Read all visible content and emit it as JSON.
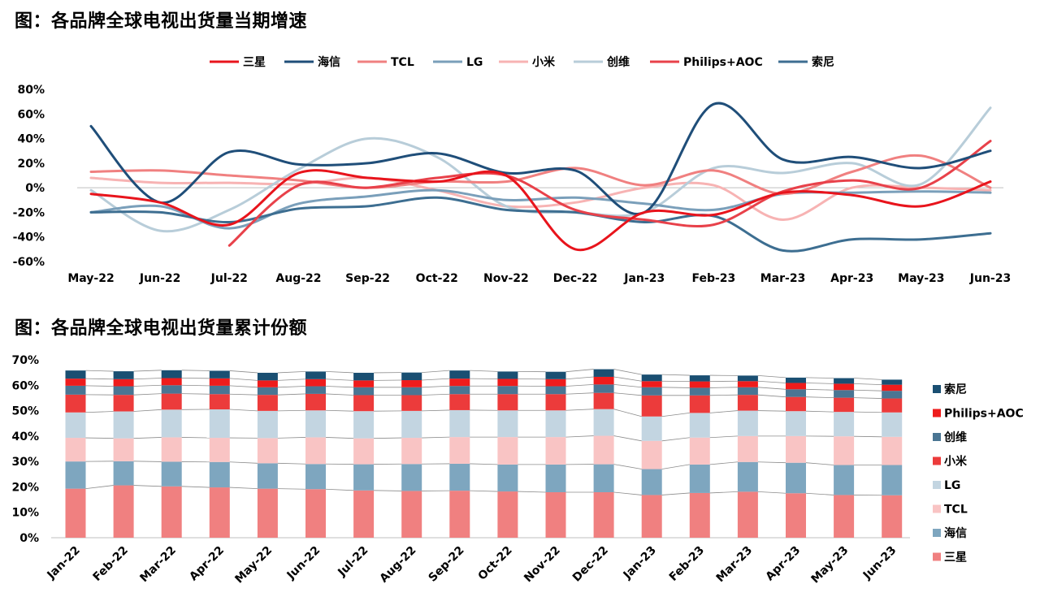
{
  "chart_data": [
    {
      "type": "line",
      "title": "图：各品牌全球电视出货量当期增速",
      "categories": [
        "May-22",
        "Jun-22",
        "Jul-22",
        "Aug-22",
        "Sep-22",
        "Oct-22",
        "Nov-22",
        "Dec-22",
        "Jan-23",
        "Feb-23",
        "Mar-23",
        "Apr-23",
        "May-23",
        "Jun-23"
      ],
      "ylim": [
        -60,
        80
      ],
      "yticks": [
        "80%",
        "60%",
        "40%",
        "20%",
        "0%",
        "-20%",
        "-40%",
        "-60%"
      ],
      "legend_position": "top",
      "grid": false,
      "series": [
        {
          "name": "三星",
          "color": "#e8141c",
          "values": [
            -5,
            -12,
            -30,
            12,
            8,
            5,
            10,
            -50,
            -20,
            -22,
            -4,
            -6,
            -15,
            5
          ]
        },
        {
          "name": "海信",
          "color": "#1f4e79",
          "values": [
            50,
            -12,
            29,
            19,
            20,
            28,
            12,
            14,
            -20,
            68,
            23,
            25,
            16,
            30
          ]
        },
        {
          "name": "TCL",
          "color": "#f08080",
          "values": [
            13,
            14,
            10,
            6,
            0,
            5,
            5,
            16,
            2,
            14,
            -5,
            13,
            26,
            0
          ]
        },
        {
          "name": "LG",
          "color": "#7a9fba",
          "values": [
            -20,
            -15,
            -33,
            -13,
            -7,
            -2,
            -10,
            -8,
            -13,
            -18,
            -5,
            -4,
            -3,
            -4
          ]
        },
        {
          "name": "小米",
          "color": "#f7b3b3",
          "values": [
            8,
            4,
            4,
            3,
            8,
            -2,
            -15,
            -12,
            0,
            2,
            -26,
            0,
            0,
            -2
          ]
        },
        {
          "name": "创维",
          "color": "#b8cdd9",
          "values": [
            -2,
            -35,
            -18,
            15,
            40,
            25,
            -15,
            -20,
            -20,
            16,
            12,
            20,
            3,
            65
          ]
        },
        {
          "name": "Philips+AOC",
          "color": "#e8414a",
          "values": [
            null,
            null,
            -47,
            2,
            0,
            8,
            10,
            -18,
            -26,
            -30,
            -3,
            6,
            0,
            38
          ]
        },
        {
          "name": "索尼",
          "color": "#3d6e91",
          "values": [
            -20,
            -20,
            -28,
            -17,
            -15,
            -8,
            -18,
            -20,
            -28,
            -23,
            -51,
            -42,
            -42,
            -37
          ]
        }
      ]
    },
    {
      "type": "bar",
      "stacked": true,
      "title": "图：各品牌全球电视出货量累计份额",
      "categories": [
        "Jan-22",
        "Feb-22",
        "Mar-22",
        "Apr-22",
        "May-22",
        "Jun-22",
        "Jul-22",
        "Aug-22",
        "Sep-22",
        "Oct-22",
        "Nov-22",
        "Dec-22",
        "Jan-23",
        "Feb-23",
        "Mar-23",
        "Apr-23",
        "May-23",
        "Jun-23"
      ],
      "ylim": [
        0,
        70
      ],
      "yticks": [
        "70%",
        "60%",
        "50%",
        "40%",
        "30%",
        "20%",
        "10%",
        "0%"
      ],
      "legend_position": "right",
      "grid": false,
      "series": [
        {
          "name": "三星",
          "color": "#f08080",
          "values": [
            19.3,
            20.6,
            20.2,
            19.8,
            19.3,
            19.1,
            18.6,
            18.4,
            18.5,
            18.2,
            17.9,
            17.9,
            16.8,
            17.6,
            18.1,
            17.5,
            16.8,
            16.7
          ]
        },
        {
          "name": "海信",
          "color": "#7ea6bf",
          "values": [
            10.7,
            9.5,
            9.7,
            10.0,
            10.0,
            9.9,
            10.3,
            10.6,
            10.6,
            10.6,
            10.9,
            11.0,
            10.2,
            11.2,
            11.7,
            12.0,
            11.8,
            11.9
          ]
        },
        {
          "name": "TCL",
          "color": "#f9c4c4",
          "values": [
            9.3,
            9.0,
            9.6,
            9.5,
            9.9,
            10.5,
            10.2,
            10.3,
            10.5,
            10.8,
            10.8,
            11.2,
            11.1,
            10.6,
            10.2,
            10.5,
            11.3,
            11.1
          ]
        },
        {
          "name": "LG",
          "color": "#c3d5e1",
          "values": [
            10.0,
            10.6,
            10.9,
            11.2,
            10.7,
            10.6,
            10.7,
            10.6,
            10.6,
            10.5,
            10.5,
            10.5,
            9.6,
            9.7,
            10.0,
            9.8,
            9.6,
            9.6
          ]
        },
        {
          "name": "小米",
          "color": "#ec3b3b",
          "values": [
            7.0,
            6.5,
            6.3,
            6.0,
            6.3,
            6.5,
            6.3,
            6.2,
            6.3,
            6.4,
            6.4,
            6.4,
            8.3,
            6.9,
            6.2,
            5.6,
            5.6,
            5.5
          ]
        },
        {
          "name": "创维",
          "color": "#4a7593",
          "values": [
            3.5,
            3.4,
            3.3,
            3.3,
            3.0,
            3.0,
            3.1,
            3.1,
            3.2,
            3.2,
            3.1,
            3.3,
            3.2,
            3.0,
            3.0,
            3.0,
            3.0,
            3.0
          ]
        },
        {
          "name": "Philips+AOC",
          "color": "#ee1c1c",
          "values": [
            2.8,
            2.8,
            2.8,
            2.9,
            2.7,
            2.8,
            2.7,
            2.8,
            2.9,
            2.8,
            2.8,
            3.0,
            2.4,
            2.5,
            2.4,
            2.5,
            2.5,
            2.4
          ]
        },
        {
          "name": "索尼",
          "color": "#1a4f72",
          "values": [
            3.2,
            3.1,
            3.1,
            3.0,
            3.0,
            3.0,
            3.0,
            3.0,
            3.2,
            2.9,
            2.9,
            3.0,
            2.6,
            2.4,
            2.2,
            2.1,
            2.2,
            2.0
          ]
        }
      ]
    }
  ]
}
